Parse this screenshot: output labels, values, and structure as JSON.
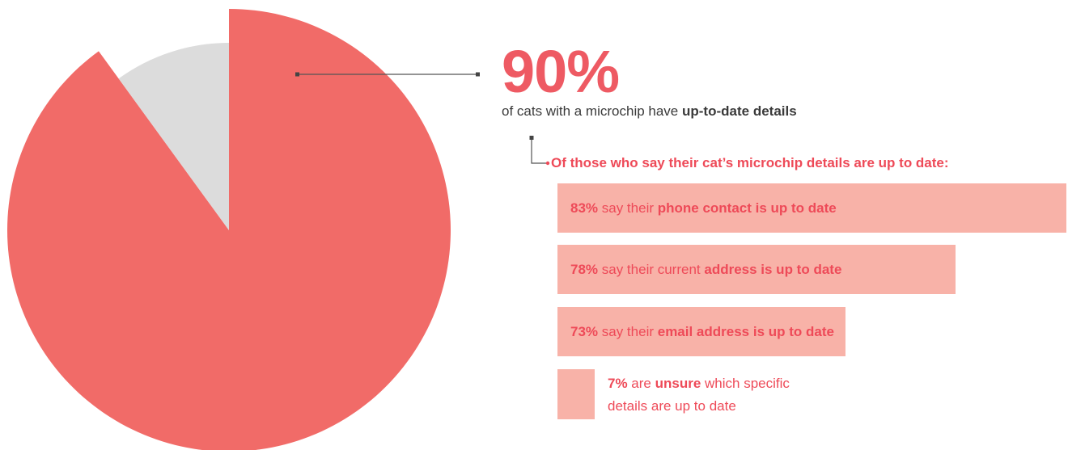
{
  "chart_data": [
    {
      "type": "pie",
      "slices": [
        {
          "label": "up-to-date details",
          "value": 90,
          "color": "#f16b68"
        },
        {
          "label": "",
          "value": 10,
          "color": "#dcdcdc"
        }
      ],
      "annotation": {
        "value_label": "90%",
        "text_prefix": "of cats with a microchip have",
        "text_bold": "up-to-date details"
      }
    },
    {
      "type": "bar",
      "orientation": "horizontal",
      "title": "Of those who say their cat’s microchip details are up to date:",
      "unit": "%",
      "bar_color": "#f8b2a8",
      "text_color": "#ee4a58",
      "items": [
        {
          "value": 83,
          "pct_label": "83%",
          "pre": " say their ",
          "bold": "phone contact is up to date",
          "post": ""
        },
        {
          "value": 78,
          "pct_label": "78%",
          "pre": " say their current ",
          "bold": "address is up to date",
          "post": ""
        },
        {
          "value": 73,
          "pct_label": "73%",
          "pre": " say their ",
          "bold": "email address is up to date",
          "post": ""
        }
      ],
      "unsure": {
        "value": 7,
        "pct_label": "7%",
        "pre": " are ",
        "bold": "unsure",
        "post_line1": " which specific",
        "line2": "details are up to date"
      }
    }
  ]
}
